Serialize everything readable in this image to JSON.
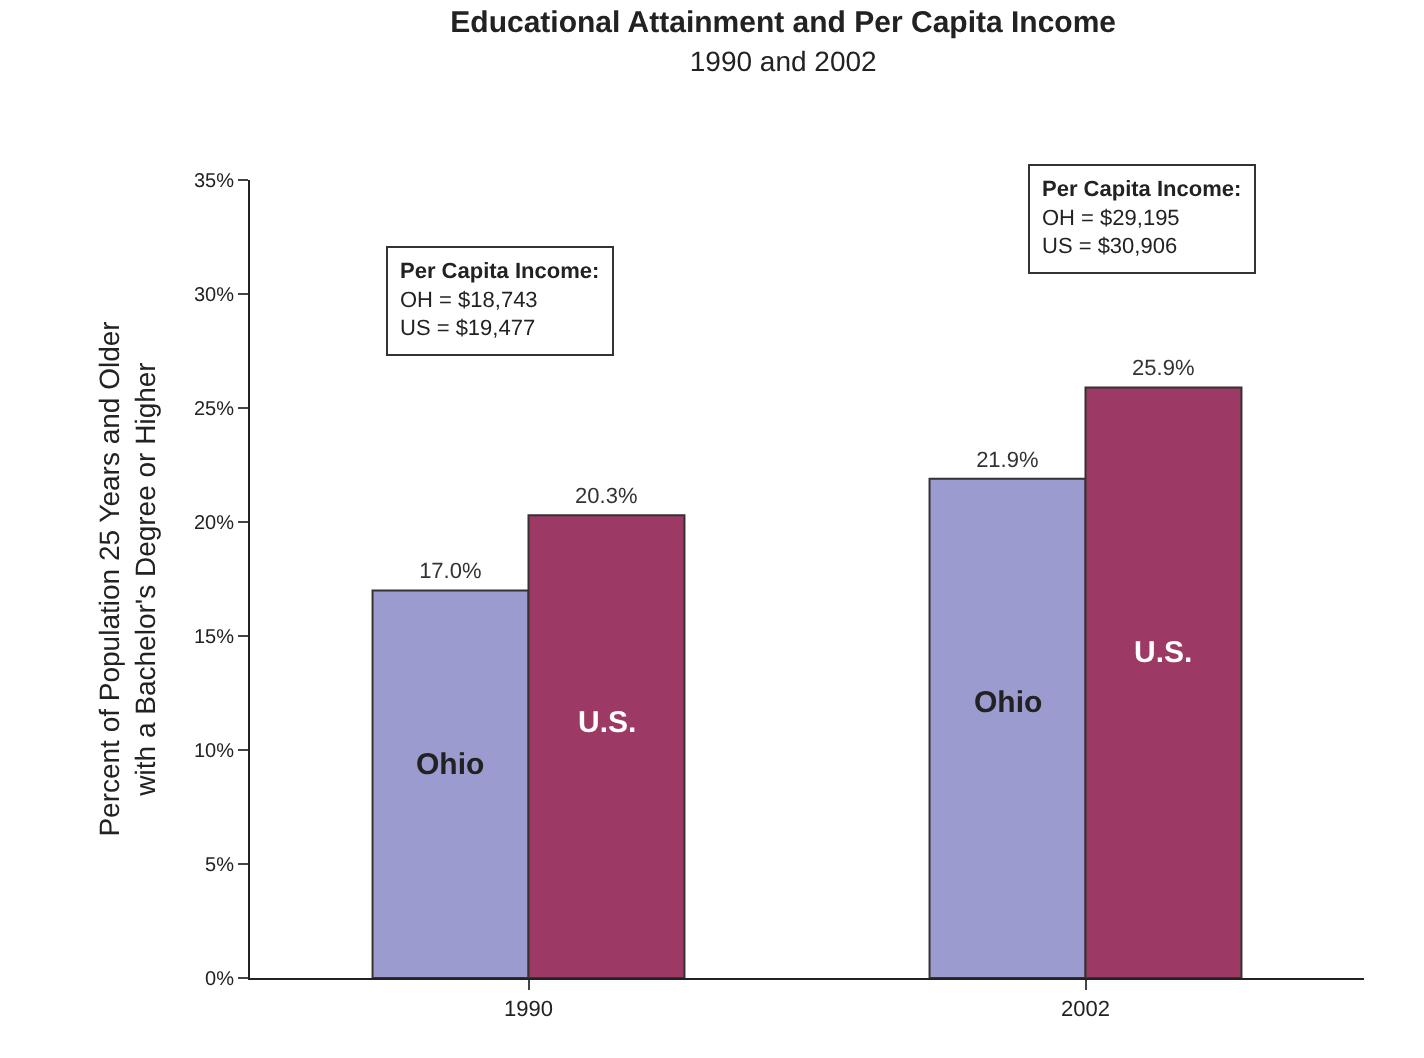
{
  "chart_data": {
    "type": "bar",
    "title": "Educational Attainment and Per Capita Income",
    "subtitle": "1990 and 2002",
    "ylabel": "Percent of Population 25 Years and Older\nwith a Bachelor's Degree or Higher",
    "categories": [
      "1990",
      "2002"
    ],
    "series": [
      {
        "name": "Ohio",
        "color": "#9b9bcf",
        "values": [
          17.0,
          21.9
        ],
        "value_labels": [
          "17.0%",
          "21.9%"
        ]
      },
      {
        "name": "U.S.",
        "color": "#9c3a65",
        "values": [
          20.3,
          25.9
        ],
        "value_labels": [
          "20.3%",
          "25.9%"
        ]
      }
    ],
    "ylim": [
      0,
      35
    ],
    "yticks": [
      {
        "value": 0,
        "label": "0%"
      },
      {
        "value": 5,
        "label": "5%"
      },
      {
        "value": 10,
        "label": "10%"
      },
      {
        "value": 15,
        "label": "15%"
      },
      {
        "value": 20,
        "label": "20%"
      },
      {
        "value": 25,
        "label": "25%"
      },
      {
        "value": 30,
        "label": "30%"
      },
      {
        "value": 35,
        "label": "35%"
      }
    ],
    "legend": false,
    "annotations": [
      "Per Capita Income:\nOH = $18,743\nUS = $19,477",
      "Per Capita Income:\nOH = $29,195\nUS = $30,906"
    ]
  }
}
